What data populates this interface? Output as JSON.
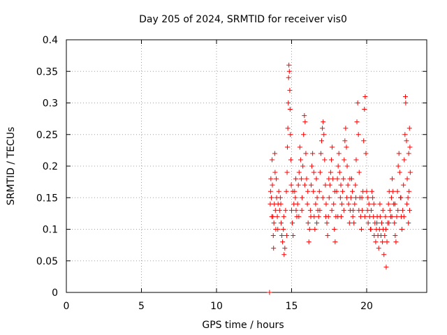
{
  "chart_data": {
    "type": "scatter",
    "title": "Day 205 of 2024, SRMTID for receiver vis0",
    "xlabel": "GPS time / hours",
    "ylabel": "SRMTID / TECUs",
    "xlim": [
      0,
      24
    ],
    "ylim": [
      0,
      0.4
    ],
    "grid": true,
    "x_ticks": [
      {
        "value": 0,
        "label": "0"
      },
      {
        "value": 5,
        "label": "5"
      },
      {
        "value": 10,
        "label": "10"
      },
      {
        "value": 15,
        "label": "15"
      },
      {
        "value": 20,
        "label": "20"
      }
    ],
    "y_ticks": [
      {
        "value": 0,
        "label": "0"
      },
      {
        "value": 0.05,
        "label": "0.05"
      },
      {
        "value": 0.1,
        "label": "0.1"
      },
      {
        "value": 0.15,
        "label": "0.15"
      },
      {
        "value": 0.2,
        "label": "0.2"
      },
      {
        "value": 0.25,
        "label": "0.25"
      },
      {
        "value": 0.3,
        "label": "0.3"
      },
      {
        "value": 0.35,
        "label": "0.35"
      },
      {
        "value": 0.4,
        "label": "0.4"
      }
    ],
    "marker_color": "#ff0000",
    "series": [
      {
        "name": "SRMTID",
        "marker": "plus",
        "points": [
          [
            13.6,
            0.16
          ],
          [
            13.62,
            0.18
          ],
          [
            13.65,
            0.15
          ],
          [
            13.7,
            0.21
          ],
          [
            13.72,
            0.17
          ],
          [
            13.75,
            0.12
          ],
          [
            13.78,
            0.09
          ],
          [
            13.8,
            0.07
          ],
          [
            13.82,
            0.11
          ],
          [
            13.85,
            0.14
          ],
          [
            13.88,
            0.22
          ],
          [
            13.9,
            0.19
          ],
          [
            13.92,
            0.13
          ],
          [
            13.95,
            0.1
          ],
          [
            14.0,
            0.15
          ],
          [
            14.05,
            0.12
          ],
          [
            14.1,
            0.14
          ],
          [
            14.15,
            0.16
          ],
          [
            14.2,
            0.13
          ],
          [
            14.25,
            0.15
          ],
          [
            14.3,
            0.11
          ],
          [
            14.35,
            0.09
          ],
          [
            14.4,
            0.08
          ],
          [
            14.45,
            0.1
          ],
          [
            14.5,
            0.06
          ],
          [
            14.55,
            0.07
          ],
          [
            14.6,
            0.13
          ],
          [
            14.65,
            0.16
          ],
          [
            14.7,
            0.19
          ],
          [
            14.72,
            0.23
          ],
          [
            14.75,
            0.26
          ],
          [
            14.78,
            0.3
          ],
          [
            14.8,
            0.34
          ],
          [
            14.82,
            0.36
          ],
          [
            14.85,
            0.35
          ],
          [
            14.88,
            0.32
          ],
          [
            14.9,
            0.29
          ],
          [
            14.92,
            0.25
          ],
          [
            14.95,
            0.21
          ],
          [
            14.98,
            0.17
          ],
          [
            15.0,
            0.13
          ],
          [
            15.05,
            0.11
          ],
          [
            15.1,
            0.09
          ],
          [
            15.15,
            0.14
          ],
          [
            15.2,
            0.16
          ],
          [
            15.25,
            0.15
          ],
          [
            15.3,
            0.13
          ],
          [
            15.35,
            0.12
          ],
          [
            15.4,
            0.14
          ],
          [
            15.45,
            0.17
          ],
          [
            15.5,
            0.19
          ],
          [
            15.55,
            0.23
          ],
          [
            15.6,
            0.21
          ],
          [
            15.65,
            0.18
          ],
          [
            15.7,
            0.15
          ],
          [
            15.75,
            0.2
          ],
          [
            15.8,
            0.25
          ],
          [
            15.85,
            0.28
          ],
          [
            15.9,
            0.27
          ],
          [
            15.95,
            0.22
          ],
          [
            16.0,
            0.18
          ],
          [
            16.05,
            0.14
          ],
          [
            16.1,
            0.11
          ],
          [
            16.15,
            0.08
          ],
          [
            16.2,
            0.1
          ],
          [
            16.25,
            0.13
          ],
          [
            16.3,
            0.17
          ],
          [
            16.35,
            0.2
          ],
          [
            16.4,
            0.22
          ],
          [
            16.45,
            0.16
          ],
          [
            16.5,
            0.12
          ],
          [
            16.55,
            0.1
          ],
          [
            16.6,
            0.14
          ],
          [
            16.65,
            0.18
          ],
          [
            16.7,
            0.15
          ],
          [
            16.75,
            0.13
          ],
          [
            16.8,
            0.12
          ],
          [
            16.85,
            0.16
          ],
          [
            16.9,
            0.19
          ],
          [
            16.95,
            0.22
          ],
          [
            17.0,
            0.24
          ],
          [
            17.05,
            0.26
          ],
          [
            17.1,
            0.27
          ],
          [
            17.15,
            0.25
          ],
          [
            17.2,
            0.21
          ],
          [
            17.25,
            0.17
          ],
          [
            17.3,
            0.14
          ],
          [
            17.35,
            0.11
          ],
          [
            17.4,
            0.09
          ],
          [
            17.45,
            0.12
          ],
          [
            17.5,
            0.15
          ],
          [
            17.55,
            0.17
          ],
          [
            17.6,
            0.19
          ],
          [
            17.65,
            0.21
          ],
          [
            17.7,
            0.23
          ],
          [
            17.75,
            0.18
          ],
          [
            17.8,
            0.14
          ],
          [
            17.85,
            0.1
          ],
          [
            17.9,
            0.08
          ],
          [
            17.95,
            0.12
          ],
          [
            18.0,
            0.16
          ],
          [
            18.05,
            0.18
          ],
          [
            18.1,
            0.2
          ],
          [
            18.15,
            0.22
          ],
          [
            18.2,
            0.19
          ],
          [
            18.25,
            0.15
          ],
          [
            18.3,
            0.12
          ],
          [
            18.35,
            0.14
          ],
          [
            18.4,
            0.16
          ],
          [
            18.45,
            0.18
          ],
          [
            18.5,
            0.21
          ],
          [
            18.55,
            0.24
          ],
          [
            18.6,
            0.26
          ],
          [
            18.65,
            0.23
          ],
          [
            18.7,
            0.2
          ],
          [
            18.75,
            0.17
          ],
          [
            18.8,
            0.14
          ],
          [
            18.85,
            0.11
          ],
          [
            18.9,
            0.13
          ],
          [
            18.95,
            0.15
          ],
          [
            19.0,
            0.18
          ],
          [
            19.05,
            0.16
          ],
          [
            19.1,
            0.13
          ],
          [
            19.15,
            0.11
          ],
          [
            19.2,
            0.14
          ],
          [
            19.25,
            0.17
          ],
          [
            19.3,
            0.21
          ],
          [
            19.35,
            0.27
          ],
          [
            19.4,
            0.3
          ],
          [
            19.45,
            0.25
          ],
          [
            19.5,
            0.19
          ],
          [
            19.55,
            0.15
          ],
          [
            19.6,
            0.12
          ],
          [
            19.65,
            0.1
          ],
          [
            19.7,
            0.13
          ],
          [
            19.75,
            0.16
          ],
          [
            19.8,
            0.24
          ],
          [
            19.85,
            0.29
          ],
          [
            19.9,
            0.31
          ],
          [
            19.95,
            0.22
          ],
          [
            20.0,
            0.16
          ],
          [
            20.05,
            0.13
          ],
          [
            20.1,
            0.11
          ],
          [
            20.15,
            0.14
          ],
          [
            20.2,
            0.12
          ],
          [
            20.25,
            0.1
          ],
          [
            20.3,
            0.13
          ],
          [
            20.35,
            0.16
          ],
          [
            20.4,
            0.15
          ],
          [
            20.45,
            0.12
          ],
          [
            20.5,
            0.09
          ],
          [
            20.55,
            0.11
          ],
          [
            20.6,
            0.08
          ],
          [
            20.65,
            0.1
          ],
          [
            20.7,
            0.12
          ],
          [
            20.75,
            0.09
          ],
          [
            20.8,
            0.07
          ],
          [
            20.85,
            0.1
          ],
          [
            20.9,
            0.12
          ],
          [
            20.95,
            0.09
          ],
          [
            21.0,
            0.11
          ],
          [
            21.05,
            0.08
          ],
          [
            21.1,
            0.1
          ],
          [
            21.15,
            0.06
          ],
          [
            21.2,
            0.09
          ],
          [
            21.25,
            0.12
          ],
          [
            21.3,
            0.04
          ],
          [
            21.35,
            0.08
          ],
          [
            21.4,
            0.11
          ],
          [
            21.45,
            0.14
          ],
          [
            21.5,
            0.16
          ],
          [
            21.55,
            0.13
          ],
          [
            21.6,
            0.12
          ],
          [
            21.65,
            0.15
          ],
          [
            21.7,
            0.18
          ],
          [
            21.75,
            0.16
          ],
          [
            21.8,
            0.14
          ],
          [
            21.85,
            0.11
          ],
          [
            21.9,
            0.09
          ],
          [
            21.95,
            0.08
          ],
          [
            22.0,
            0.12
          ],
          [
            22.05,
            0.16
          ],
          [
            22.1,
            0.2
          ],
          [
            22.15,
            0.22
          ],
          [
            22.2,
            0.19
          ],
          [
            22.25,
            0.15
          ],
          [
            22.3,
            0.12
          ],
          [
            22.35,
            0.1
          ],
          [
            22.4,
            0.13
          ],
          [
            22.45,
            0.17
          ],
          [
            22.5,
            0.21
          ],
          [
            22.55,
            0.25
          ],
          [
            22.58,
            0.31
          ],
          [
            22.6,
            0.3
          ],
          [
            22.65,
            0.24
          ],
          [
            22.7,
            0.18
          ],
          [
            22.75,
            0.15
          ],
          [
            22.8,
            0.22
          ],
          [
            22.85,
            0.26
          ],
          [
            22.88,
            0.23
          ],
          [
            13.58,
            0.14
          ],
          [
            13.68,
            0.12
          ],
          [
            13.98,
            0.18
          ],
          [
            14.08,
            0.1
          ],
          [
            14.28,
            0.14
          ],
          [
            14.48,
            0.12
          ],
          [
            14.68,
            0.09
          ],
          [
            15.08,
            0.16
          ],
          [
            15.28,
            0.18
          ],
          [
            15.48,
            0.12
          ],
          [
            15.68,
            0.13
          ],
          [
            15.88,
            0.17
          ],
          [
            16.08,
            0.16
          ],
          [
            16.28,
            0.12
          ],
          [
            16.48,
            0.19
          ],
          [
            16.68,
            0.11
          ],
          [
            16.88,
            0.13
          ],
          [
            17.08,
            0.15
          ],
          [
            17.28,
            0.12
          ],
          [
            17.48,
            0.18
          ],
          [
            17.68,
            0.13
          ],
          [
            17.88,
            0.16
          ],
          [
            18.08,
            0.12
          ],
          [
            18.28,
            0.17
          ],
          [
            18.48,
            0.13
          ],
          [
            18.68,
            0.15
          ],
          [
            18.88,
            0.18
          ],
          [
            19.08,
            0.12
          ],
          [
            19.28,
            0.15
          ],
          [
            19.48,
            0.13
          ],
          [
            19.68,
            0.15
          ],
          [
            19.88,
            0.12
          ],
          [
            20.08,
            0.15
          ],
          [
            20.28,
            0.1
          ],
          [
            20.48,
            0.14
          ],
          [
            20.68,
            0.11
          ],
          [
            20.88,
            0.14
          ],
          [
            21.08,
            0.13
          ],
          [
            21.28,
            0.1
          ],
          [
            21.48,
            0.11
          ],
          [
            21.68,
            0.12
          ],
          [
            21.88,
            0.14
          ],
          [
            22.08,
            0.13
          ],
          [
            22.28,
            0.15
          ],
          [
            22.48,
            0.12
          ],
          [
            22.68,
            0.14
          ],
          [
            22.78,
            0.11
          ],
          [
            22.82,
            0.16
          ],
          [
            22.86,
            0.13
          ],
          [
            22.9,
            0.19
          ],
          [
            13.53,
            0.0
          ]
        ]
      }
    ]
  }
}
